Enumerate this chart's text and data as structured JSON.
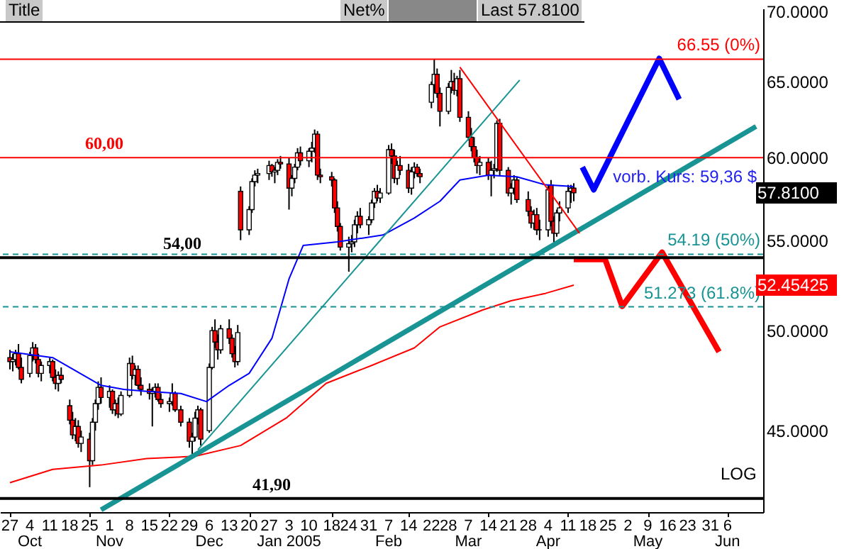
{
  "chart_data": {
    "type": "candlestick",
    "annotations": [
      "Title",
      "Net%",
      "Last 57.8100",
      "LOG",
      {
        "text": "vorb. Kurs: 59,36 $",
        "x": "2005-05-22",
        "y": 58.8
      },
      "57.8100",
      "52.45425"
    ],
    "x": [
      "2004-09-27",
      "2004-09-28",
      "2004-09-29",
      "2004-09-30",
      "2004-10-01",
      "2004-10-04",
      "2004-10-05",
      "2004-10-06",
      "2004-10-07",
      "2004-10-08",
      "2004-10-11",
      "2004-10-12",
      "2004-10-13",
      "2004-10-14",
      "2004-10-15",
      "2004-10-18",
      "2004-10-19",
      "2004-10-20",
      "2004-10-21",
      "2004-10-22",
      "2004-10-25",
      "2004-10-26",
      "2004-10-27",
      "2004-10-28",
      "2004-10-29",
      "2004-11-01",
      "2004-11-02",
      "2004-11-03",
      "2004-11-04",
      "2004-11-05",
      "2004-11-08",
      "2004-11-09",
      "2004-11-10",
      "2004-11-11",
      "2004-11-12",
      "2004-11-15",
      "2004-11-16",
      "2004-11-17",
      "2004-11-18",
      "2004-11-19",
      "2004-11-22",
      "2004-11-23",
      "2004-11-24",
      "2004-11-26",
      "2004-11-29",
      "2004-11-30",
      "2004-12-01",
      "2004-12-02",
      "2004-12-03",
      "2004-12-06",
      "2004-12-07",
      "2004-12-08",
      "2004-12-09",
      "2004-12-10",
      "2004-12-13",
      "2004-12-14",
      "2004-12-15",
      "2004-12-16",
      "2004-12-17",
      "2004-12-20",
      "2004-12-21",
      "2004-12-22",
      "2004-12-23",
      "2004-12-27",
      "2004-12-28",
      "2004-12-29",
      "2004-12-30",
      "2004-12-31",
      "2005-01-03",
      "2005-01-04",
      "2005-01-05",
      "2005-01-06",
      "2005-01-07",
      "2005-01-10",
      "2005-01-11",
      "2005-01-12",
      "2005-01-13",
      "2005-01-14",
      "2005-01-18",
      "2005-01-19",
      "2005-01-20",
      "2005-01-21",
      "2005-01-24",
      "2005-01-25",
      "2005-01-26",
      "2005-01-27",
      "2005-01-28",
      "2005-01-31",
      "2005-02-01",
      "2005-02-02",
      "2005-02-03",
      "2005-02-04",
      "2005-02-07",
      "2005-02-08",
      "2005-02-09",
      "2005-02-10",
      "2005-02-11",
      "2005-02-14",
      "2005-02-15",
      "2005-02-16",
      "2005-02-17",
      "2005-02-18",
      "2005-02-22",
      "2005-02-23",
      "2005-02-24",
      "2005-02-25",
      "2005-02-28",
      "2005-03-01",
      "2005-03-02",
      "2005-03-03",
      "2005-03-04",
      "2005-03-07",
      "2005-03-08",
      "2005-03-09",
      "2005-03-10",
      "2005-03-11",
      "2005-03-14",
      "2005-03-15",
      "2005-03-16",
      "2005-03-17",
      "2005-03-18",
      "2005-03-21",
      "2005-03-22",
      "2005-03-23",
      "2005-03-24",
      "2005-03-28",
      "2005-03-29",
      "2005-03-30",
      "2005-03-31",
      "2005-04-01",
      "2005-04-04",
      "2005-04-05",
      "2005-04-06",
      "2005-04-07",
      "2005-04-08",
      "2005-04-11",
      "2005-04-12",
      "2005-04-13"
    ],
    "ohlc": [
      [
        48.6,
        49.0,
        48.0,
        48.4
      ],
      [
        48.4,
        48.8,
        47.9,
        48.5
      ],
      [
        48.5,
        49.0,
        48.2,
        48.8
      ],
      [
        48.8,
        49.3,
        48.0,
        48.1
      ],
      [
        48.1,
        48.6,
        47.3,
        47.5
      ],
      [
        47.8,
        48.9,
        47.6,
        48.7
      ],
      [
        48.7,
        49.4,
        48.4,
        49.1
      ],
      [
        49.1,
        49.3,
        48.3,
        48.5
      ],
      [
        48.5,
        48.8,
        47.6,
        47.8
      ],
      [
        47.8,
        48.4,
        47.4,
        48.2
      ],
      [
        48.2,
        48.6,
        47.8,
        48.4
      ],
      [
        48.4,
        48.5,
        47.4,
        47.6
      ],
      [
        47.6,
        48.0,
        47.0,
        47.3
      ],
      [
        47.3,
        47.9,
        46.9,
        47.7
      ],
      [
        47.7,
        48.1,
        47.3,
        47.5
      ],
      [
        46.2,
        46.5,
        45.3,
        45.5
      ],
      [
        45.5,
        45.9,
        44.6,
        44.8
      ],
      [
        44.8,
        45.6,
        44.5,
        45.2
      ],
      [
        45.2,
        45.5,
        44.2,
        44.4
      ],
      [
        44.4,
        45.0,
        44.0,
        44.7
      ],
      [
        44.6,
        44.9,
        42.4,
        43.6
      ],
      [
        43.6,
        45.6,
        43.4,
        45.4
      ],
      [
        45.4,
        46.5,
        45.0,
        46.3
      ],
      [
        46.3,
        47.4,
        46.0,
        47.1
      ],
      [
        47.1,
        47.6,
        46.3,
        46.6
      ],
      [
        46.6,
        47.2,
        46.1,
        46.9
      ],
      [
        46.9,
        47.0,
        45.8,
        46.0
      ],
      [
        46.0,
        46.5,
        45.7,
        46.3
      ],
      [
        46.3,
        46.6,
        45.6,
        45.8
      ],
      [
        45.8,
        46.9,
        45.7,
        46.7
      ],
      [
        46.7,
        48.6,
        46.6,
        48.3
      ],
      [
        48.3,
        48.7,
        47.5,
        47.7
      ],
      [
        47.7,
        48.2,
        47.2,
        48.0
      ],
      [
        48.0,
        48.2,
        47.0,
        47.2
      ],
      [
        47.2,
        47.6,
        46.7,
        47.0
      ],
      [
        47.0,
        47.3,
        46.5,
        46.8
      ],
      [
        46.8,
        47.1,
        45.2,
        46.9
      ],
      [
        46.9,
        47.3,
        46.6,
        47.1
      ],
      [
        47.1,
        47.3,
        46.4,
        46.5
      ],
      [
        46.5,
        46.8,
        46.1,
        46.3
      ],
      [
        46.3,
        46.6,
        45.9,
        46.4
      ],
      [
        46.4,
        47.3,
        46.2,
        46.8
      ],
      [
        46.8,
        46.9,
        45.9,
        46.0
      ],
      [
        46.0,
        46.2,
        45.2,
        45.4
      ],
      [
        45.4,
        45.6,
        44.2,
        44.5
      ],
      [
        44.5,
        44.9,
        43.9,
        44.7
      ],
      [
        44.7,
        45.9,
        44.5,
        45.6
      ],
      [
        45.6,
        46.2,
        45.3,
        46.0
      ],
      [
        46.0,
        46.1,
        44.3,
        44.6
      ],
      [
        45.0,
        48.3,
        44.9,
        48.1
      ],
      [
        48.1,
        50.2,
        48.0,
        50.0
      ],
      [
        50.0,
        50.6,
        49.1,
        49.4
      ],
      [
        49.4,
        49.8,
        48.5,
        49.0
      ],
      [
        49.0,
        50.3,
        48.8,
        50.1
      ],
      [
        50.1,
        50.6,
        49.3,
        49.6
      ],
      [
        49.6,
        49.8,
        48.6,
        48.8
      ],
      [
        48.8,
        49.2,
        48.1,
        48.4
      ],
      [
        48.4,
        50.3,
        48.2,
        49.9
      ],
      [
        57.9,
        58.2,
        55.0,
        55.6
      ],
      [
        55.6,
        57.0,
        55.3,
        56.8
      ],
      [
        56.8,
        58.7,
        56.6,
        58.5
      ],
      [
        58.5,
        59.2,
        58.2,
        58.9
      ],
      [
        58.9,
        59.3,
        58.4,
        59.0
      ],
      [
        59.0,
        59.8,
        58.6,
        59.5
      ],
      [
        59.5,
        59.6,
        58.8,
        59.1
      ],
      [
        59.1,
        59.4,
        58.4,
        59.2
      ],
      [
        59.2,
        59.9,
        58.9,
        59.7
      ],
      [
        59.7,
        60.1,
        59.3,
        59.6
      ],
      [
        59.6,
        60.0,
        56.8,
        58.1
      ],
      [
        58.1,
        58.9,
        57.6,
        58.7
      ],
      [
        58.7,
        59.6,
        58.4,
        59.4
      ],
      [
        59.4,
        60.6,
        59.2,
        60.3
      ],
      [
        60.3,
        60.7,
        59.5,
        59.8
      ],
      [
        59.8,
        60.6,
        59.4,
        60.4
      ],
      [
        60.4,
        61.0,
        59.7,
        60.6
      ],
      [
        60.6,
        61.8,
        60.3,
        61.5
      ],
      [
        61.5,
        61.7,
        58.6,
        58.9
      ],
      [
        58.9,
        59.3,
        58.4,
        58.8
      ],
      [
        58.8,
        59.1,
        58.2,
        58.6
      ],
      [
        58.6,
        58.7,
        56.6,
        56.9
      ],
      [
        56.9,
        57.3,
        55.5,
        55.8
      ],
      [
        55.8,
        56.0,
        54.4,
        54.6
      ],
      [
        54.6,
        55.2,
        53.2,
        54.8
      ],
      [
        54.8,
        55.3,
        54.3,
        54.9
      ],
      [
        54.9,
        56.2,
        54.6,
        55.9
      ],
      [
        55.9,
        56.7,
        55.4,
        56.4
      ],
      [
        56.4,
        56.9,
        55.7,
        55.9
      ],
      [
        55.9,
        56.4,
        55.3,
        56.2
      ],
      [
        56.2,
        57.4,
        56.0,
        57.2
      ],
      [
        57.2,
        58.1,
        56.9,
        57.9
      ],
      [
        57.9,
        58.3,
        57.3,
        57.5
      ],
      [
        57.5,
        58.1,
        57.2,
        57.8
      ],
      [
        57.8,
        60.8,
        57.7,
        60.5
      ],
      [
        60.5,
        60.9,
        59.6,
        60.1
      ],
      [
        60.1,
        60.5,
        58.4,
        58.7
      ],
      [
        58.7,
        59.8,
        58.3,
        59.5
      ],
      [
        59.5,
        60.1,
        58.9,
        59.2
      ],
      [
        59.2,
        59.6,
        57.8,
        58.1
      ],
      [
        58.1,
        59.4,
        57.7,
        59.1
      ],
      [
        59.1,
        59.7,
        58.7,
        59.4
      ],
      [
        59.4,
        59.6,
        58.8,
        59.0
      ],
      [
        59.0,
        59.3,
        58.4,
        58.8
      ],
      [
        63.6,
        65.0,
        63.2,
        64.8
      ],
      [
        64.8,
        66.55,
        64.2,
        65.5
      ],
      [
        65.5,
        65.9,
        63.9,
        64.2
      ],
      [
        64.2,
        64.6,
        62.0,
        63.0
      ],
      [
        63.0,
        64.9,
        62.8,
        64.6
      ],
      [
        64.6,
        65.8,
        64.2,
        65.0
      ],
      [
        65.0,
        65.6,
        64.1,
        64.4
      ],
      [
        64.4,
        65.4,
        64.0,
        65.2
      ],
      [
        65.2,
        65.8,
        62.3,
        62.6
      ],
      [
        62.6,
        63.0,
        61.1,
        61.3
      ],
      [
        61.3,
        61.9,
        60.4,
        60.7
      ],
      [
        60.7,
        61.3,
        59.7,
        60.0
      ],
      [
        60.0,
        60.5,
        59.0,
        59.5
      ],
      [
        59.5,
        60.1,
        58.9,
        59.7
      ],
      [
        59.7,
        60.0,
        58.6,
        58.9
      ],
      [
        58.9,
        59.8,
        57.6,
        59.2
      ],
      [
        59.2,
        59.6,
        58.7,
        59.3
      ],
      [
        59.3,
        62.4,
        59.1,
        62.2
      ],
      [
        62.2,
        62.5,
        58.9,
        59.2
      ],
      [
        59.2,
        59.4,
        57.6,
        57.8
      ],
      [
        57.8,
        58.4,
        57.1,
        58.1
      ],
      [
        58.1,
        58.9,
        57.7,
        58.6
      ],
      [
        58.6,
        58.8,
        57.2,
        57.4
      ],
      [
        57.4,
        57.9,
        56.4,
        56.7
      ],
      [
        56.7,
        57.0,
        55.7,
        56.0
      ],
      [
        56.0,
        56.8,
        55.6,
        56.5
      ],
      [
        56.5,
        56.9,
        55.3,
        55.6
      ],
      [
        55.6,
        56.2,
        55.0,
        55.6
      ],
      [
        55.6,
        58.3,
        55.2,
        58.0
      ],
      [
        58.3,
        58.6,
        55.8,
        56.1
      ],
      [
        56.1,
        56.4,
        54.7,
        55.4
      ],
      [
        55.4,
        56.8,
        55.2,
        56.6
      ],
      [
        56.6,
        57.3,
        56.1,
        56.9
      ],
      [
        56.9,
        58.3,
        56.6,
        57.9
      ],
      [
        57.9,
        58.3,
        57.2,
        58.1
      ],
      [
        58.1,
        58.4,
        57.3,
        57.81
      ]
    ],
    "series": [
      {
        "type": "line",
        "color": "#0000ff",
        "x": [
          "2004-09-27",
          "2004-10-12",
          "2004-10-29",
          "2004-11-06",
          "2004-11-14",
          "2004-11-26",
          "2004-12-05",
          "2004-12-13",
          "2004-12-20",
          "2004-12-28",
          "2005-01-03",
          "2005-01-08",
          "2005-01-20",
          "2005-02-05",
          "2005-02-16",
          "2005-02-25",
          "2005-03-04",
          "2005-03-14",
          "2005-03-24",
          "2005-04-03",
          "2005-04-13"
        ],
        "values": [
          48.9,
          48.6,
          47.2,
          47.0,
          46.9,
          46.8,
          46.4,
          47.2,
          47.8,
          49.6,
          52.8,
          54.7,
          54.9,
          55.3,
          56.3,
          57.3,
          58.6,
          58.9,
          58.8,
          58.3,
          58.2
        ]
      },
      {
        "type": "line",
        "color": "#ff0000",
        "x": [
          "2004-09-27",
          "2004-10-12",
          "2004-10-29",
          "2004-11-14",
          "2004-12-01",
          "2004-12-17",
          "2005-01-02",
          "2005-01-16",
          "2005-02-01",
          "2005-02-16",
          "2005-02-25",
          "2005-03-12",
          "2005-03-22",
          "2005-04-03",
          "2005-04-13"
        ],
        "values": [
          42.6,
          43.2,
          43.4,
          43.7,
          43.8,
          44.3,
          45.6,
          47.3,
          48.2,
          49.1,
          50.2,
          51.1,
          51.6,
          52.0,
          52.45425
        ]
      },
      {
        "type": "line",
        "color": "#199494",
        "x": [
          "2004-10-29",
          "2005-06-16"
        ],
        "values": [
          41.4,
          62.0
        ]
      },
      {
        "type": "line",
        "color": "#199494",
        "x": [
          "2004-12-02",
          "2005-03-25"
        ],
        "values": [
          44.1,
          65.1
        ]
      },
      {
        "type": "line",
        "color": "#ff0000",
        "x": [
          "2005-03-04",
          "2005-04-15"
        ],
        "values": [
          66.0,
          55.4
        ]
      },
      {
        "type": "line",
        "color": "#0000ff",
        "x": [
          "2005-04-16",
          "2005-04-20",
          "2005-05-13",
          "2005-05-20"
        ],
        "values": [
          59.4,
          58.0,
          66.6,
          63.8
        ]
      },
      {
        "type": "line",
        "color": "#ff0000",
        "x": [
          "2005-04-13",
          "2005-04-24",
          "2005-04-30",
          "2005-05-14",
          "2005-06-03"
        ],
        "values": [
          53.9,
          53.9,
          51.3,
          54.3,
          48.9
        ]
      }
    ],
    "ref_lines": [
      {
        "axis": "y",
        "value": 60,
        "label": "60,00",
        "color": "#ff0000"
      },
      {
        "axis": "y",
        "value": 54,
        "label": "54,00",
        "color": "#000000"
      },
      {
        "axis": "y",
        "value": 41.9,
        "label": "41,90",
        "color": "#000000"
      },
      {
        "axis": "y",
        "value": 66.55,
        "label": "66.55 (0%)",
        "color": "#ff0000"
      },
      {
        "axis": "y",
        "value": 54.19,
        "label": "54.19 (50%)",
        "color": "#199494",
        "line_style": "dashed"
      },
      {
        "axis": "y",
        "value": 51.273,
        "label": "51.273 (61.8%)",
        "color": "#199494",
        "line_style": "dashed"
      }
    ],
    "xlim": [
      "2004-09-26",
      "2005-06-16"
    ],
    "xticks": [
      {
        "value": "2004-09-27",
        "label": "27"
      },
      {
        "value": "2004-10-04",
        "label": "4\nOct"
      },
      {
        "value": "2004-10-11",
        "label": "11"
      },
      {
        "value": "2004-10-18",
        "label": "18"
      },
      {
        "value": "2004-10-25",
        "label": "25"
      },
      {
        "value": "2004-11-01",
        "label": "1\nNov"
      },
      {
        "value": "2004-11-08",
        "label": "8"
      },
      {
        "value": "2004-11-15",
        "label": "15"
      },
      {
        "value": "2004-11-22",
        "label": "22"
      },
      {
        "value": "2004-11-29",
        "label": "29"
      },
      {
        "value": "2004-12-06",
        "label": "6\nDec"
      },
      {
        "value": "2004-12-13",
        "label": "13"
      },
      {
        "value": "2004-12-20",
        "label": "20"
      },
      {
        "value": "2004-12-27",
        "label": "27"
      },
      {
        "value": "2005-01-03",
        "label": "3\nJan 2005"
      },
      {
        "value": "2005-01-10",
        "label": "10"
      },
      {
        "value": "2005-01-18",
        "label": "18"
      },
      {
        "value": "2005-01-24",
        "label": "24"
      },
      {
        "value": "2005-01-31",
        "label": "31"
      },
      {
        "value": "2005-02-07",
        "label": "7\nFeb"
      },
      {
        "value": "2005-02-14",
        "label": "14"
      },
      {
        "value": "2005-02-22",
        "label": "22"
      },
      {
        "value": "2005-02-28",
        "label": "28"
      },
      {
        "value": "2005-03-07",
        "label": "7\nMar"
      },
      {
        "value": "2005-03-14",
        "label": "14"
      },
      {
        "value": "2005-03-21",
        "label": "21"
      },
      {
        "value": "2005-03-28",
        "label": "28"
      },
      {
        "value": "2005-04-04",
        "label": "4\nApr"
      },
      {
        "value": "2005-04-11",
        "label": "11"
      },
      {
        "value": "2005-04-18",
        "label": "18"
      },
      {
        "value": "2005-04-25",
        "label": "25"
      },
      {
        "value": "2005-05-02",
        "label": "2"
      },
      {
        "value": "2005-05-09",
        "label": "9\nMay"
      },
      {
        "value": "2005-05-16",
        "label": "16"
      },
      {
        "value": "2005-05-23",
        "label": "23"
      },
      {
        "value": "2005-05-31",
        "label": "31"
      },
      {
        "value": "2005-06-06",
        "label": "6\nJun"
      }
    ],
    "ylim": [
      41.3,
      70.2
    ],
    "yticks": [
      {
        "value": 45,
        "label": "45.0000"
      },
      {
        "value": 50,
        "label": "50.0000"
      },
      {
        "value": 55,
        "label": "55.0000"
      },
      {
        "value": 60,
        "label": "60.0000"
      },
      {
        "value": 65,
        "label": "65.0000"
      },
      {
        "value": 70,
        "label": "70.0000"
      }
    ],
    "log": true
  }
}
